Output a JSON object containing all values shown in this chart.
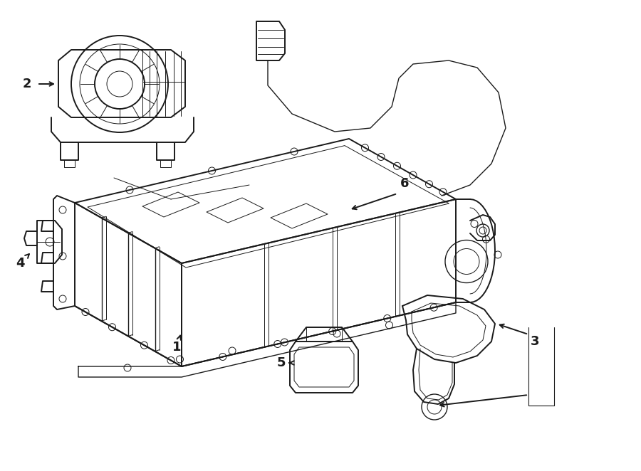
{
  "bg_color": "#ffffff",
  "line_color": "#1a1a1a",
  "lw_main": 1.4,
  "lw_thin": 0.7,
  "lw_med": 1.0,
  "label_fontsize": 12,
  "figsize": [
    9.0,
    6.62
  ],
  "dpi": 100
}
